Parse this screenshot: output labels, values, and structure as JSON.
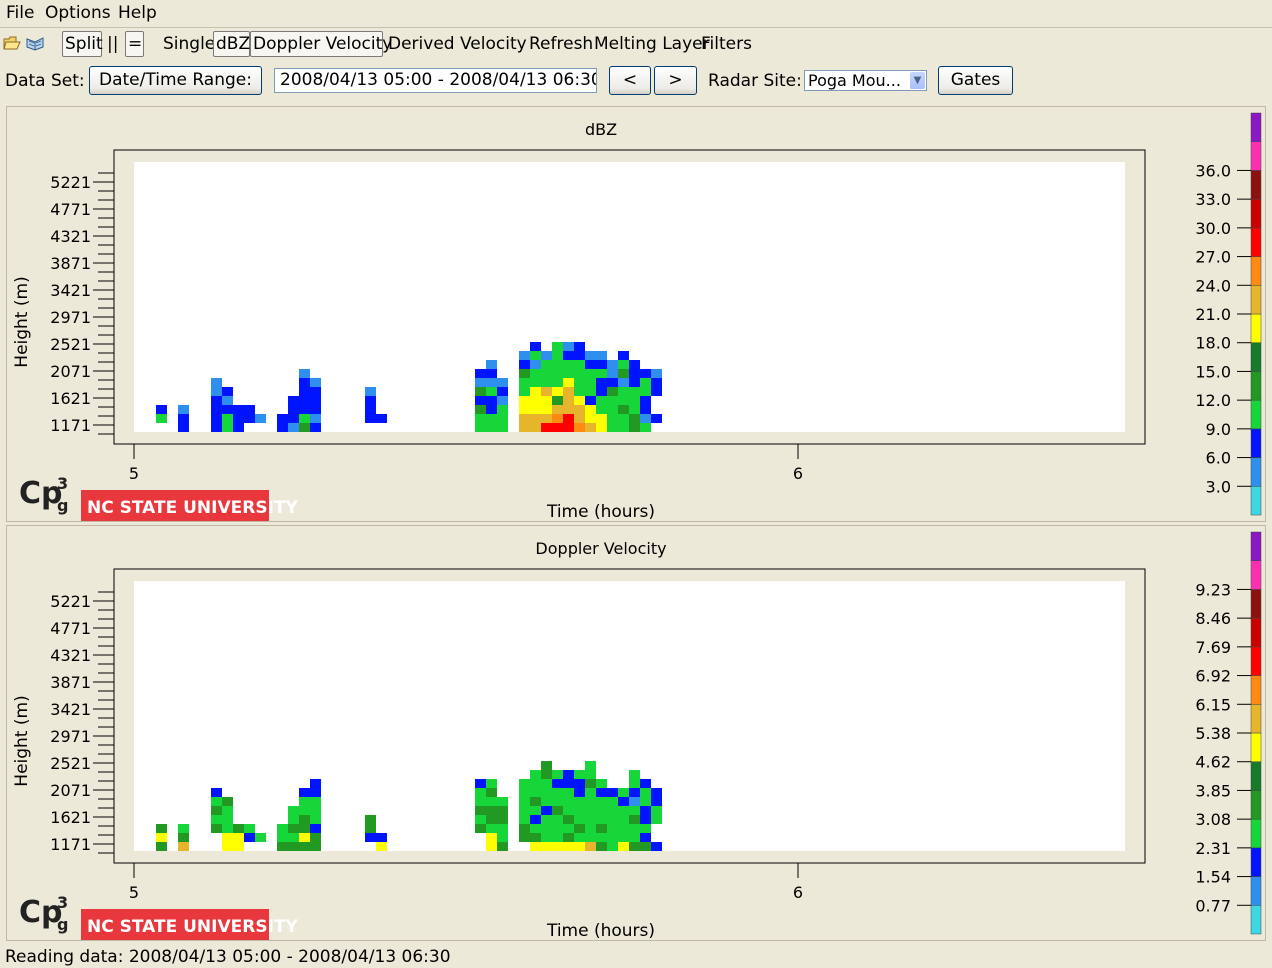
{
  "menubar": {
    "file": "File",
    "options": "Options",
    "help": "Help"
  },
  "toolbar": {
    "open_icon": "open-folder-icon",
    "book_icon": "open-book-icon",
    "split": "Split",
    "parallel": "||",
    "equal": "=",
    "single": "Single",
    "dbz": "dBZ",
    "doppler_velocity": "Doppler Velocity",
    "derived_velocity": "Derived Velocity",
    "refresh": "Refresh",
    "melting_layer": "Melting Layer",
    "filters": "Filters"
  },
  "dataset": {
    "label": "Data Set:",
    "date_time_range_button": "Date/Time Range:",
    "range_value": "2008/04/13 05:00 - 2008/04/13 06:30",
    "prev": "<",
    "next": ">",
    "radar_site_label": "Radar Site:",
    "radar_site_value": "Poga Mou...",
    "gates": "Gates"
  },
  "colors": {
    "colorbar": [
      "#3dd7e6",
      "#2f8fef",
      "#0014ff",
      "#16d63a",
      "#229922",
      "#177b2b",
      "#ffff00",
      "#e6b52b",
      "#ff8a13",
      "#ff0000",
      "#cc0000",
      "#8c1212",
      "#ff2fb4",
      "#8b18c4"
    ]
  },
  "logo": {
    "cp3g": "CP3G",
    "ncsu": "NC STATE UNIVERSITY"
  },
  "plots": [
    {
      "chart_data": {
        "type": "heatmap",
        "title": "dBZ",
        "xlabel": "Time (hours)",
        "ylabel": "Height (m)",
        "x_ticks": [
          "5",
          "6"
        ],
        "y_ticks": [
          "1171",
          "1621",
          "2071",
          "2521",
          "2971",
          "3421",
          "3871",
          "4321",
          "4771",
          "5221"
        ],
        "colorbar_ticks": [
          "3.0",
          "6.0",
          "9.0",
          "12.0",
          "15.0",
          "18.0",
          "21.0",
          "24.0",
          "27.0",
          "30.0",
          "33.0",
          "36.0"
        ],
        "columns": [
          {
            "col": 2,
            "cells": [
              0,
              3,
              2
            ]
          },
          {
            "col": 4,
            "cells": [
              2,
              2,
              1
            ]
          },
          {
            "col": 7,
            "cells": [
              2,
              2,
              2,
              2,
              1,
              1
            ]
          },
          {
            "col": 8,
            "cells": [
              3,
              3,
              2,
              1,
              2
            ]
          },
          {
            "col": 9,
            "cells": [
              2,
              2,
              2
            ]
          },
          {
            "col": 10,
            "cells": [
              0,
              2,
              2
            ]
          },
          {
            "col": 11,
            "cells": [
              0,
              1
            ]
          },
          {
            "col": 13,
            "cells": [
              2,
              2
            ]
          },
          {
            "col": 14,
            "cells": [
              1,
              2,
              2,
              2
            ]
          },
          {
            "col": 15,
            "cells": [
              4,
              3,
              2,
              2,
              2,
              2,
              1
            ]
          },
          {
            "col": 16,
            "cells": [
              2,
              1,
              2,
              2,
              2,
              1
            ]
          },
          {
            "col": 21,
            "cells": [
              0,
              2,
              2,
              2,
              1
            ]
          },
          {
            "col": 22,
            "cells": [
              0,
              2
            ]
          },
          {
            "col": 31,
            "cells": [
              3,
              3,
              4,
              2,
              4,
              1,
              2
            ]
          },
          {
            "col": 32,
            "cells": [
              3,
              3,
              2,
              2,
              3,
              1,
              2,
              1
            ]
          },
          {
            "col": 33,
            "cells": [
              3,
              3,
              3,
              1,
              2,
              1
            ]
          },
          {
            "col": 35,
            "cells": [
              6,
              6,
              5,
              5,
              3,
              3,
              4,
              2,
              1
            ]
          },
          {
            "col": 36,
            "cells": [
              6,
              6,
              5,
              5,
              5,
              3,
              3,
              1,
              3,
              2
            ]
          },
          {
            "col": 37,
            "cells": [
              8,
              6,
              5,
              5,
              6,
              3,
              3,
              3,
              1
            ]
          },
          {
            "col": 38,
            "cells": [
              8,
              7,
              6,
              4,
              5,
              3,
              3,
              3,
              3,
              3
            ]
          },
          {
            "col": 39,
            "cells": [
              8,
              8,
              6,
              6,
              6,
              5,
              3,
              3,
              2,
              1
            ]
          },
          {
            "col": 40,
            "cells": [
              7,
              6,
              6,
              5,
              3,
              3,
              3,
              3,
              2,
              2
            ]
          },
          {
            "col": 41,
            "cells": [
              6,
              5,
              5,
              2,
              3,
              3,
              3,
              2,
              1
            ]
          },
          {
            "col": 42,
            "cells": [
              5,
              5,
              3,
              3,
              2,
              2,
              3,
              2,
              1
            ]
          },
          {
            "col": 43,
            "cells": [
              3,
              3,
              3,
              3,
              4,
              2,
              1,
              1
            ]
          },
          {
            "col": 44,
            "cells": [
              3,
              3,
              4,
              3,
              3,
              1,
              4,
              3,
              2
            ]
          },
          {
            "col": 45,
            "cells": [
              4,
              4,
              3,
              3,
              3,
              2,
              2,
              2
            ]
          },
          {
            "col": 46,
            "cells": [
              3,
              1,
              2,
              2,
              3,
              3,
              2
            ]
          },
          {
            "col": 47,
            "cells": [
              0,
              2,
              0,
              0,
              2,
              2,
              1
            ]
          }
        ]
      }
    },
    {
      "chart_data": {
        "type": "heatmap",
        "title": "Doppler Velocity",
        "xlabel": "Time (hours)",
        "ylabel": "Height (m)",
        "x_ticks": [
          "5",
          "6"
        ],
        "y_ticks": [
          "1171",
          "1621",
          "2071",
          "2521",
          "2971",
          "3421",
          "3871",
          "4321",
          "4771",
          "5221"
        ],
        "colorbar_ticks": [
          "0.77",
          "1.54",
          "2.31",
          "3.08",
          "3.85",
          "4.62",
          "5.38",
          "6.15",
          "6.92",
          "7.69",
          "8.46",
          "9.23"
        ],
        "columns": [
          {
            "col": 2,
            "cells": [
              4,
              5,
              4
            ]
          },
          {
            "col": 4,
            "cells": [
              6,
              4,
              3
            ]
          },
          {
            "col": 7,
            "cells": [
              0,
              0,
              4,
              3,
              4,
              3,
              2
            ]
          },
          {
            "col": 8,
            "cells": [
              5,
              5,
              3,
              3,
              3,
              4
            ]
          },
          {
            "col": 9,
            "cells": [
              5,
              5,
              4
            ]
          },
          {
            "col": 10,
            "cells": [
              0,
              2,
              3
            ]
          },
          {
            "col": 11,
            "cells": [
              0,
              3
            ]
          },
          {
            "col": 13,
            "cells": [
              4,
              3,
              3
            ]
          },
          {
            "col": 14,
            "cells": [
              4,
              3,
              4,
              3,
              3
            ]
          },
          {
            "col": 15,
            "cells": [
              4,
              5,
              4,
              4,
              3,
              3,
              2
            ]
          },
          {
            "col": 16,
            "cells": [
              4,
              4,
              2,
              3,
              3,
              3,
              2,
              2
            ]
          },
          {
            "col": 21,
            "cells": [
              0,
              2,
              4,
              4
            ]
          },
          {
            "col": 22,
            "cells": [
              5,
              2
            ]
          },
          {
            "col": 31,
            "cells": [
              0,
              0,
              4,
              3,
              4,
              3,
              3,
              2
            ]
          },
          {
            "col": 32,
            "cells": [
              5,
              5,
              3,
              4,
              4,
              3,
              4,
              3
            ]
          },
          {
            "col": 33,
            "cells": [
              4,
              3,
              3,
              4,
              4,
              3
            ]
          },
          {
            "col": 35,
            "cells": [
              0,
              4,
              4,
              3,
              3,
              3,
              3,
              3
            ]
          },
          {
            "col": 36,
            "cells": [
              5,
              4,
              3,
              2,
              3,
              4,
              3,
              3,
              3
            ]
          },
          {
            "col": 37,
            "cells": [
              5,
              3,
              3,
              3,
              2,
              3,
              3,
              3,
              4,
              4
            ]
          },
          {
            "col": 38,
            "cells": [
              5,
              3,
              3,
              3,
              4,
              3,
              3,
              2,
              3
            ]
          },
          {
            "col": 39,
            "cells": [
              5,
              4,
              3,
              4,
              3,
              3,
              3,
              2,
              2
            ]
          },
          {
            "col": 40,
            "cells": [
              5,
              3,
              4,
              3,
              3,
              3,
              2,
              2,
              3
            ]
          },
          {
            "col": 41,
            "cells": [
              6,
              3,
              3,
              3,
              3,
              3,
              3,
              4,
              3,
              3
            ]
          },
          {
            "col": 42,
            "cells": [
              4,
              3,
              4,
              3,
              3,
              3,
              2,
              3
            ]
          },
          {
            "col": 43,
            "cells": [
              3,
              3,
              3,
              3,
              3,
              3,
              2
            ]
          },
          {
            "col": 44,
            "cells": [
              5,
              3,
              3,
              3,
              3,
              2,
              3
            ]
          },
          {
            "col": 45,
            "cells": [
              4,
              3,
              3,
              4,
              3,
              1,
              2,
              3,
              3
            ]
          },
          {
            "col": 46,
            "cells": [
              4,
              2,
              3,
              2,
              2,
              3,
              3,
              2
            ]
          },
          {
            "col": 47,
            "cells": [
              2,
              0,
              0,
              3,
              3,
              2,
              2
            ]
          }
        ]
      }
    }
  ],
  "status": {
    "text": "Reading data: 2008/04/13 05:00 - 2008/04/13 06:30"
  }
}
